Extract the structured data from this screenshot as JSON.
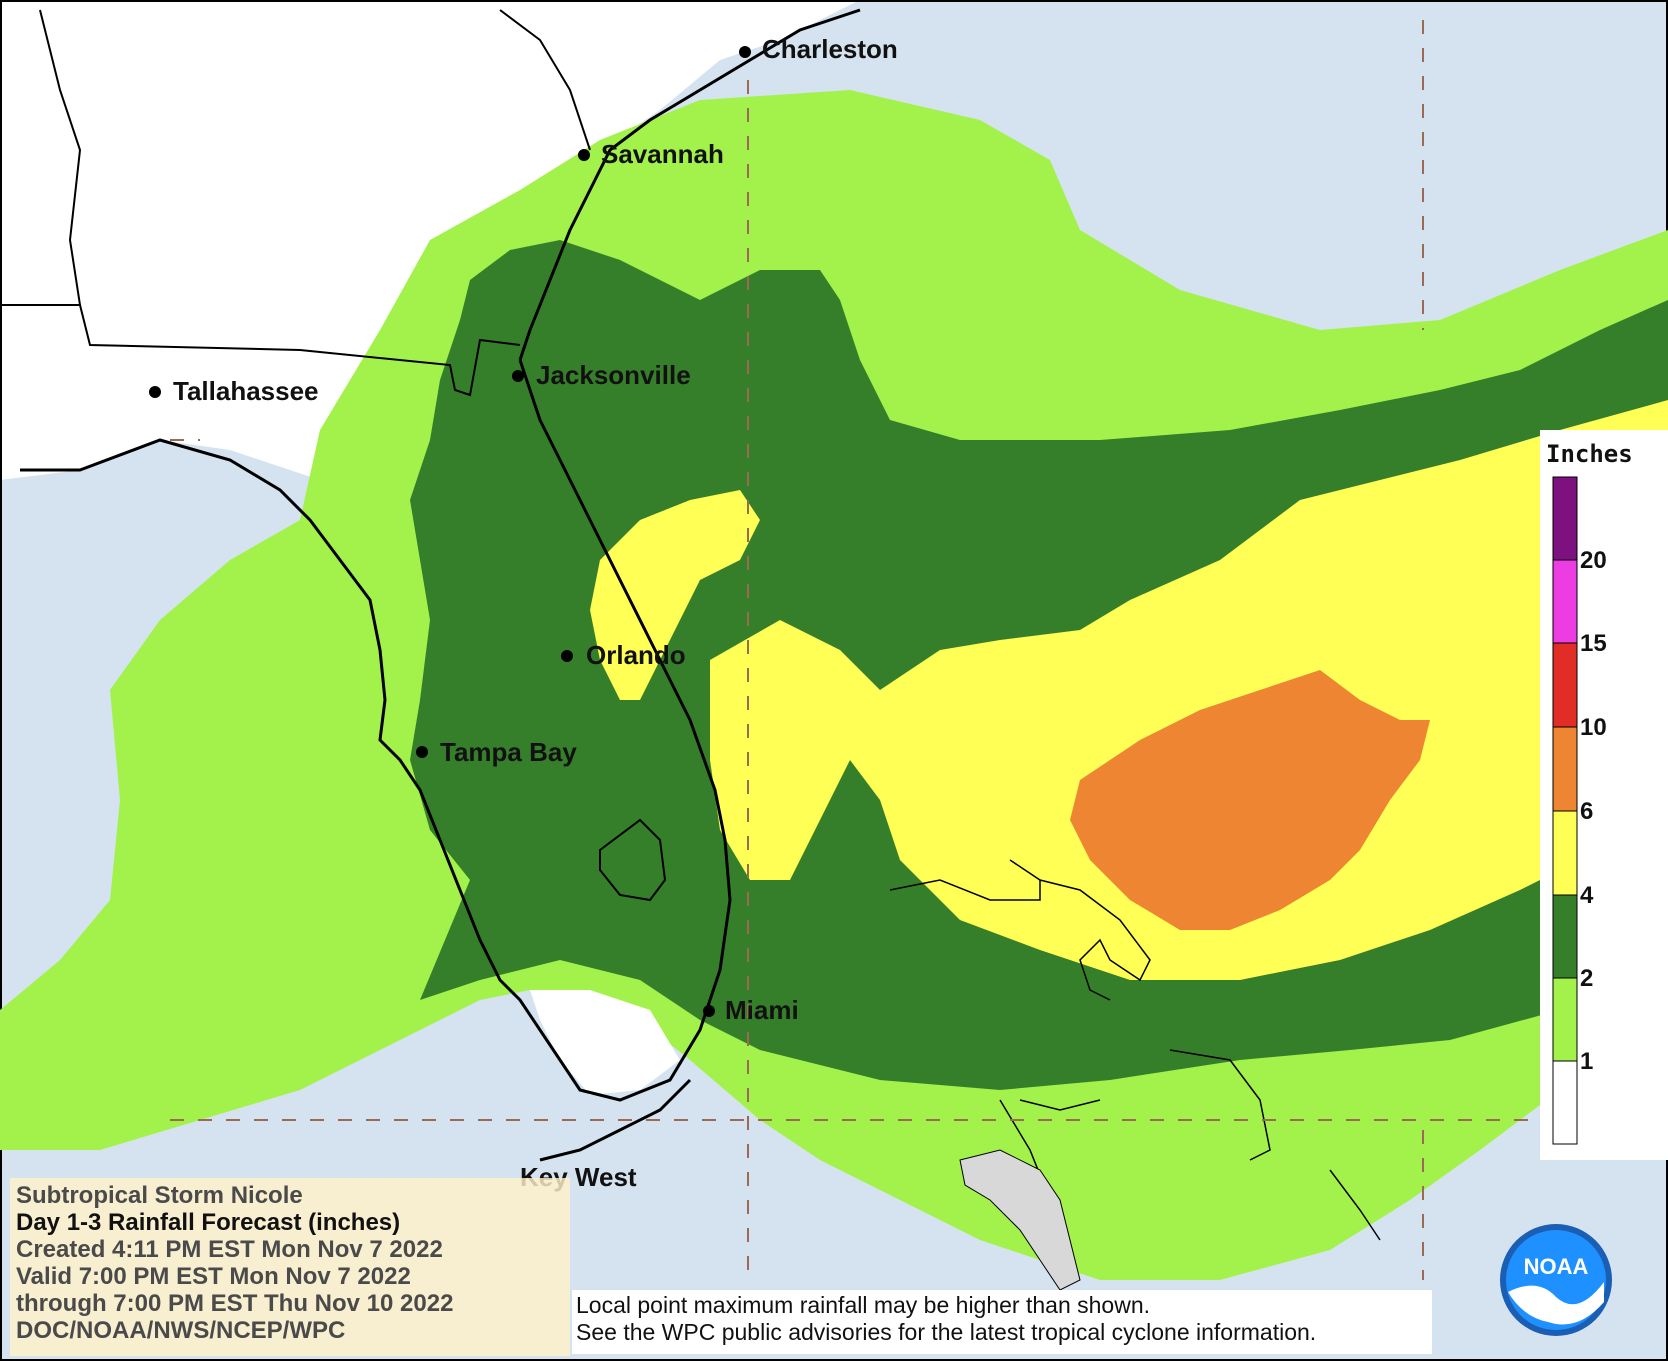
{
  "map": {
    "cities": [
      {
        "name": "Charleston"
      },
      {
        "name": "Savannah"
      },
      {
        "name": "Jacksonville"
      },
      {
        "name": "Tallahassee"
      },
      {
        "name": "Orlando"
      },
      {
        "name": "Tampa Bay"
      },
      {
        "name": "Miami"
      },
      {
        "name": "Key West"
      }
    ],
    "colors": {
      "water": "#d5e3f0",
      "land": "#ffffff",
      "c1_2": "#a2f24b",
      "c2_4": "#367f2a",
      "c4_6": "#ffff55",
      "c6_10": "#ee8533",
      "c10_15": "#e12d26",
      "c15_20": "#ec3de3",
      "c20_plus": "#7c117f"
    }
  },
  "legend": {
    "title": "Inches",
    "ticks": [
      "20",
      "15",
      "10",
      "6",
      "4",
      "2",
      "1"
    ]
  },
  "info": {
    "storm": "Subtropical Storm Nicole",
    "product": "Day 1-3 Rainfall Forecast",
    "product_units": "(inches)",
    "created": "Created 4:11 PM EST Mon Nov 7 2022",
    "valid": "Valid 7:00 PM EST Mon Nov 7 2022",
    "through": "through 7:00 PM EST Thu Nov 10 2022",
    "source": "DOC/NOAA/NWS/NCEP/WPC"
  },
  "note": {
    "line1": "Local point maximum rainfall may be higher than shown.",
    "line2": "See the WPC public advisories for the latest tropical cyclone information."
  },
  "logo": {
    "text": "NOAA",
    "icon": "noaa-logo-icon"
  }
}
